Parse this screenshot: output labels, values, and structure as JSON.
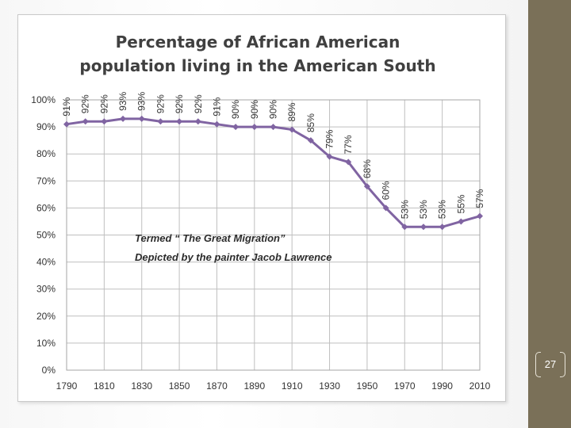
{
  "slide": {
    "page_number": "27"
  },
  "colors": {
    "line": "#8064a2",
    "grid": "#bfbfbf",
    "axis_text": "#333333"
  },
  "chart_data": {
    "type": "line",
    "title_line1": "Percentage of African American",
    "title_line2": "population living in the American South",
    "x": [
      1790,
      1800,
      1810,
      1820,
      1830,
      1840,
      1850,
      1860,
      1870,
      1880,
      1890,
      1900,
      1910,
      1920,
      1930,
      1940,
      1950,
      1960,
      1970,
      1980,
      1990,
      2000,
      2010
    ],
    "values": [
      91,
      92,
      92,
      93,
      93,
      92,
      92,
      92,
      91,
      90,
      90,
      90,
      89,
      85,
      79,
      77,
      68,
      60,
      53,
      53,
      53,
      55,
      57
    ],
    "data_labels": [
      "91%",
      "92%",
      "92%",
      "93%",
      "93%",
      "92%",
      "92%",
      "92%",
      "91%",
      "90%",
      "90%",
      "90%",
      "89%",
      "85%",
      "79%",
      "77%",
      "68%",
      "60%",
      "53%",
      "53%",
      "53%",
      "55%",
      "57%"
    ],
    "x_tick_labels": [
      "1790",
      "1810",
      "1830",
      "1850",
      "1870",
      "1890",
      "1910",
      "1930",
      "1950",
      "1970",
      "1990",
      "2010"
    ],
    "x_tick_values": [
      1790,
      1810,
      1830,
      1850,
      1870,
      1890,
      1910,
      1930,
      1950,
      1970,
      1990,
      2010
    ],
    "y_tick_labels": [
      "0%",
      "10%",
      "20%",
      "30%",
      "40%",
      "50%",
      "60%",
      "70%",
      "80%",
      "90%",
      "100%"
    ],
    "y_tick_values": [
      0,
      10,
      20,
      30,
      40,
      50,
      60,
      70,
      80,
      90,
      100
    ],
    "ylim": [
      0,
      100
    ],
    "xlim": [
      1790,
      2010
    ],
    "grid": true,
    "annotations": [
      "Termed “ The Great Migration”",
      "Depicted by the painter Jacob Lawrence"
    ]
  }
}
